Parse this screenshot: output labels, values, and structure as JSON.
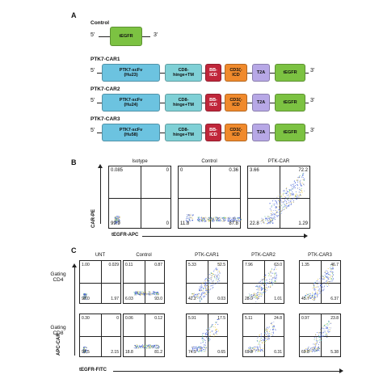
{
  "panel_a": {
    "letter": "A",
    "five_prime": "5'",
    "three_prime": "3'",
    "control": {
      "title": "Control",
      "tegfr": "tEGFR"
    },
    "constructs": [
      {
        "title": "PTK7-CAR1",
        "scfv": "PTK7-scFv\n(Hu23)",
        "hinge": "CD8-\nhinge+TM",
        "bb": "BB-\nICD",
        "cd3": "CD3ζ-\nICD",
        "t2a": "T2A",
        "tegfr": "tEGFR"
      },
      {
        "title": "PTK7-CAR2",
        "scfv": "PTK7-scFv\n(Hu24)",
        "hinge": "CD8-\nhinge+TM",
        "bb": "BB-\nICD",
        "cd3": "CD3ζ-\nICD",
        "t2a": "T2A",
        "tegfr": "tEGFR"
      },
      {
        "title": "PTK7-CAR3",
        "scfv": "PTK7-scFv\n(Hu58)",
        "hinge": "CD8-\nhinge+TM",
        "bb": "BB-\nICD",
        "cd3": "CD3ζ-\nICD",
        "t2a": "T2A",
        "tegfr": "tEGFR"
      }
    ],
    "colors": {
      "scfv": "#6cc3e0",
      "hinge": "#7fd0d6",
      "bb": "#c0263a",
      "cd3": "#f08a2c",
      "t2a": "#b7a8e6",
      "tegfr": "#7cc242"
    }
  },
  "panel_b": {
    "letter": "B",
    "ylabel": "CAR-PE",
    "xlabel": "tEGFR-APC",
    "plots": [
      {
        "title": "Isotype",
        "ul": "0.085",
        "ur": "0",
        "ll": "99.9",
        "lr": "0"
      },
      {
        "title": "Control",
        "ul": "0",
        "ur": "0.36",
        "ll": "11.8",
        "lr": "87.8"
      },
      {
        "title": "PTK-CAR",
        "ul": "3.66",
        "ur": "72.2",
        "ll": "22.8",
        "lr": "1.29"
      }
    ]
  },
  "panel_c": {
    "letter": "C",
    "ylabel": "APC-CAR",
    "xlabel": "tEGFR-FITC",
    "col_titles": [
      "UNT",
      "Control",
      "PTK-CAR1",
      "PTK-CAR2",
      "PTK-CAR3"
    ],
    "row_labels": [
      "Gating\nCD4",
      "Gating\nCD8"
    ],
    "rows": [
      [
        {
          "ul": "1.00",
          "ur": "0.029",
          "ll": "97.0",
          "lr": "1.97"
        },
        {
          "ul": "0.11",
          "ur": "0.87",
          "ll": "6.03",
          "lr": "93.0"
        },
        {
          "ul": "5.33",
          "ur": "52.5",
          "ll": "42.2",
          "lr": "0.03"
        },
        {
          "ul": "7.96",
          "ur": "63.0",
          "ll": "28.0",
          "lr": "1.01"
        },
        {
          "ul": "1.35",
          "ur": "46.7",
          "ll": "45.7",
          "lr": "6.37"
        }
      ],
      [
        {
          "ul": "0.30",
          "ur": "0",
          "ll": "97.5",
          "lr": "2.15"
        },
        {
          "ul": "0.06",
          "ur": "0.12",
          "ll": "18.8",
          "lr": "81.2"
        },
        {
          "ul": "5.91",
          "ur": "17.5",
          "ll": "74.9",
          "lr": "0.65"
        },
        {
          "ul": "5.11",
          "ur": "24.8",
          "ll": "69.8",
          "lr": "0.31"
        },
        {
          "ul": "0.97",
          "ur": "23.8",
          "ll": "69.8",
          "lr": "5.38"
        }
      ]
    ]
  }
}
